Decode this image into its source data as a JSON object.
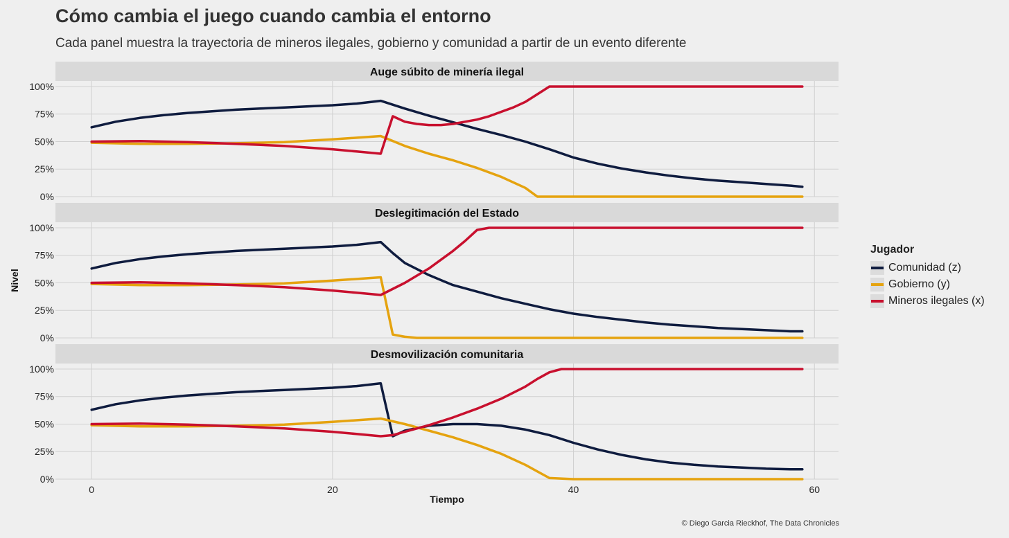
{
  "title": "Cómo cambia el juego cuando cambia el entorno",
  "subtitle": "Cada panel muestra la trayectoria de mineros ilegales, gobierno y comunidad a partir de un evento diferente",
  "caption": "© Diego Garcia Rieckhof, The Data Chronicles",
  "legend": {
    "title": "Jugador",
    "items": [
      {
        "label": "Comunidad (z)",
        "color": "#0f1c3f"
      },
      {
        "label": "Gobierno (y)",
        "color": "#e5a30f"
      },
      {
        "label": "Mineros ilegales (x)",
        "color": "#c8102e"
      }
    ]
  },
  "chart_data": {
    "type": "line",
    "xlabel": "Tiempo",
    "ylabel": "Nivel",
    "xlim": [
      -3,
      62
    ],
    "ylim": [
      0,
      1.05
    ],
    "x_ticks": [
      0,
      20,
      40,
      60
    ],
    "y_ticks": [
      0,
      0.25,
      0.5,
      0.75,
      1.0
    ],
    "y_tick_labels": [
      "0%",
      "25%",
      "50%",
      "75%",
      "100%"
    ],
    "grid": true,
    "legend_position": "right",
    "facets": [
      {
        "title": "Auge súbito de minería ilegal",
        "series": [
          {
            "name": "Comunidad (z)",
            "x": [
              0,
              2,
              4,
              6,
              8,
              10,
              12,
              14,
              16,
              18,
              20,
              22,
              24,
              26,
              28,
              30,
              32,
              34,
              36,
              38,
              40,
              42,
              44,
              46,
              48,
              50,
              52,
              54,
              56,
              58,
              59
            ],
            "values": [
              0.63,
              0.68,
              0.715,
              0.74,
              0.76,
              0.775,
              0.79,
              0.8,
              0.81,
              0.82,
              0.83,
              0.845,
              0.87,
              0.8,
              0.735,
              0.675,
              0.615,
              0.56,
              0.5,
              0.43,
              0.355,
              0.3,
              0.255,
              0.22,
              0.19,
              0.165,
              0.145,
              0.13,
              0.115,
              0.1,
              0.09
            ]
          },
          {
            "name": "Gobierno (y)",
            "x": [
              0,
              4,
              8,
              12,
              16,
              20,
              24,
              26,
              28,
              30,
              32,
              34,
              36,
              37,
              40,
              45,
              50,
              55,
              59
            ],
            "values": [
              0.49,
              0.48,
              0.48,
              0.485,
              0.495,
              0.52,
              0.55,
              0.46,
              0.39,
              0.33,
              0.26,
              0.18,
              0.08,
              0.0,
              0,
              0,
              0,
              0,
              0
            ]
          },
          {
            "name": "Mineros ilegales (x)",
            "x": [
              0,
              4,
              8,
              12,
              16,
              20,
              22,
              24,
              25,
              26,
              27,
              28,
              29,
              30,
              31,
              32,
              33,
              34,
              35,
              36,
              37,
              38,
              40,
              45,
              50,
              55,
              59
            ],
            "values": [
              0.5,
              0.505,
              0.495,
              0.48,
              0.46,
              0.43,
              0.41,
              0.39,
              0.73,
              0.68,
              0.66,
              0.65,
              0.65,
              0.66,
              0.68,
              0.7,
              0.73,
              0.77,
              0.81,
              0.86,
              0.93,
              1.0,
              1.0,
              1.0,
              1.0,
              1.0,
              1.0
            ]
          }
        ]
      },
      {
        "title": "Deslegitimación del Estado",
        "series": [
          {
            "name": "Comunidad (z)",
            "x": [
              0,
              2,
              4,
              6,
              8,
              10,
              12,
              14,
              16,
              18,
              20,
              22,
              24,
              25,
              26,
              28,
              30,
              32,
              34,
              36,
              38,
              40,
              42,
              44,
              46,
              48,
              50,
              52,
              54,
              56,
              58,
              59
            ],
            "values": [
              0.63,
              0.68,
              0.715,
              0.74,
              0.76,
              0.775,
              0.79,
              0.8,
              0.81,
              0.82,
              0.83,
              0.845,
              0.87,
              0.77,
              0.68,
              0.57,
              0.48,
              0.42,
              0.36,
              0.31,
              0.26,
              0.22,
              0.19,
              0.165,
              0.14,
              0.12,
              0.105,
              0.09,
              0.08,
              0.07,
              0.06,
              0.06
            ]
          },
          {
            "name": "Gobierno (y)",
            "x": [
              0,
              4,
              8,
              12,
              16,
              20,
              24,
              25,
              26,
              27,
              28,
              30,
              35,
              40,
              45,
              50,
              55,
              59
            ],
            "values": [
              0.49,
              0.48,
              0.48,
              0.485,
              0.495,
              0.52,
              0.55,
              0.03,
              0.01,
              0.0,
              0,
              0,
              0,
              0,
              0,
              0,
              0,
              0
            ]
          },
          {
            "name": "Mineros ilegales (x)",
            "x": [
              0,
              4,
              8,
              12,
              16,
              20,
              22,
              24,
              26,
              28,
              30,
              31,
              32,
              33,
              35,
              40,
              45,
              50,
              55,
              59
            ],
            "values": [
              0.5,
              0.505,
              0.495,
              0.48,
              0.46,
              0.43,
              0.41,
              0.39,
              0.5,
              0.63,
              0.79,
              0.88,
              0.98,
              1.0,
              1.0,
              1.0,
              1.0,
              1.0,
              1.0,
              1.0
            ]
          }
        ]
      },
      {
        "title": "Desmovilización comunitaria",
        "series": [
          {
            "name": "Comunidad (z)",
            "x": [
              0,
              2,
              4,
              6,
              8,
              10,
              12,
              14,
              16,
              18,
              20,
              22,
              24,
              25,
              26,
              28,
              30,
              32,
              34,
              36,
              38,
              40,
              42,
              44,
              46,
              48,
              50,
              52,
              54,
              56,
              58,
              59
            ],
            "values": [
              0.63,
              0.68,
              0.715,
              0.74,
              0.76,
              0.775,
              0.79,
              0.8,
              0.81,
              0.82,
              0.83,
              0.845,
              0.87,
              0.39,
              0.44,
              0.485,
              0.5,
              0.5,
              0.485,
              0.45,
              0.4,
              0.33,
              0.27,
              0.22,
              0.18,
              0.15,
              0.13,
              0.115,
              0.105,
              0.095,
              0.09,
              0.09
            ]
          },
          {
            "name": "Gobierno (y)",
            "x": [
              0,
              4,
              8,
              12,
              16,
              20,
              24,
              26,
              28,
              30,
              32,
              34,
              36,
              37,
              38,
              40,
              45,
              50,
              55,
              59
            ],
            "values": [
              0.49,
              0.48,
              0.48,
              0.485,
              0.495,
              0.52,
              0.55,
              0.5,
              0.44,
              0.38,
              0.31,
              0.23,
              0.13,
              0.07,
              0.01,
              0.0,
              0,
              0,
              0,
              0
            ]
          },
          {
            "name": "Mineros ilegales (x)",
            "x": [
              0,
              4,
              8,
              12,
              16,
              20,
              22,
              24,
              25,
              26,
              28,
              30,
              32,
              34,
              36,
              37,
              38,
              39,
              40,
              45,
              50,
              55,
              59
            ],
            "values": [
              0.5,
              0.505,
              0.495,
              0.48,
              0.46,
              0.43,
              0.41,
              0.39,
              0.4,
              0.43,
              0.49,
              0.56,
              0.64,
              0.73,
              0.84,
              0.91,
              0.97,
              1.0,
              1.0,
              1.0,
              1.0,
              1.0,
              1.0
            ]
          }
        ]
      }
    ]
  }
}
